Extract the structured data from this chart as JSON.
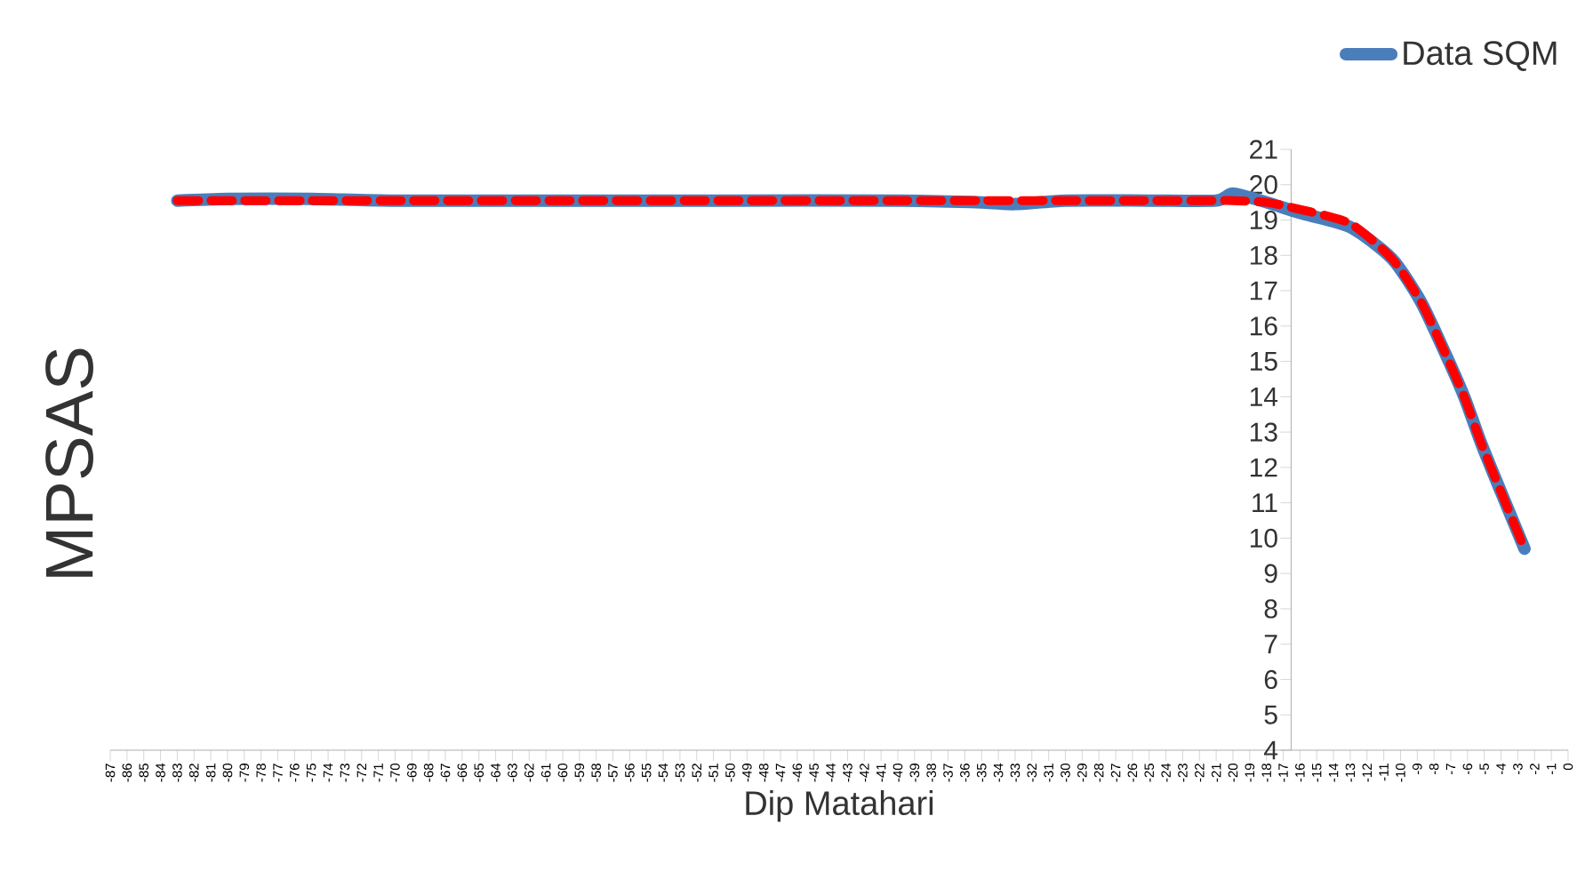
{
  "chart_data": {
    "type": "line",
    "xlabel": "Dip Matahari",
    "ylabel": "MPSAS",
    "series": [
      {
        "name": "Data SQM",
        "color": "#4a7ebb",
        "line_style": "solid",
        "x": [
          -83,
          -80,
          -75,
          -70,
          -60,
          -50,
          -40,
          -35,
          -33,
          -30,
          -25,
          -21,
          -20,
          -18,
          -16,
          -13,
          -10.5,
          -8.8,
          -7.4,
          -6.2,
          -5.2,
          -4,
          -2.6
        ],
        "values": [
          19.55,
          19.6,
          19.6,
          19.55,
          19.55,
          19.55,
          19.55,
          19.5,
          19.45,
          19.55,
          19.55,
          19.55,
          19.75,
          19.5,
          19.2,
          18.8,
          17.9,
          16.7,
          15.3,
          14.0,
          12.7,
          11.3,
          9.7
        ]
      },
      {
        "type": "line",
        "color": "#ff0000",
        "line_style": "dashed",
        "x": [
          -83,
          -80,
          -75,
          -70,
          -60,
          -50,
          -40,
          -35,
          -30,
          -25,
          -21,
          -20,
          -18,
          -16,
          -13,
          -10.5,
          -8.8,
          -7.4,
          -6.2,
          -5.2,
          -4,
          -2.6
        ],
        "values": [
          19.55,
          19.55,
          19.55,
          19.55,
          19.55,
          19.55,
          19.55,
          19.55,
          19.55,
          19.55,
          19.55,
          19.55,
          19.5,
          19.3,
          18.9,
          17.9,
          16.7,
          15.3,
          14.0,
          12.7,
          11.3,
          9.7
        ]
      }
    ],
    "xlim": [
      -87,
      0
    ],
    "xticks": [
      -87,
      -86,
      -85,
      -84,
      -83,
      -82,
      -81,
      -80,
      -79,
      -78,
      -77,
      -76,
      -75,
      -74,
      -73,
      -72,
      -71,
      -70,
      -69,
      -68,
      -67,
      -66,
      -65,
      -64,
      -63,
      -62,
      -61,
      -60,
      -59,
      -58,
      -57,
      -56,
      -55,
      -54,
      -53,
      -52,
      -51,
      -50,
      -49,
      -48,
      -47,
      -46,
      -45,
      -44,
      -43,
      -42,
      -41,
      -40,
      -39,
      -38,
      -37,
      -36,
      -35,
      -34,
      -33,
      -32,
      -31,
      -30,
      -29,
      -28,
      -27,
      -26,
      -25,
      -24,
      -23,
      -22,
      -21,
      -20,
      -19,
      -18,
      -17,
      -16,
      -15,
      -14,
      -13,
      -12,
      -11,
      -10,
      -9,
      -8,
      -7,
      -6,
      -5,
      -4,
      -3,
      -2,
      -1,
      0
    ],
    "ylim": [
      4,
      21
    ],
    "yticks": [
      4,
      5,
      6,
      7,
      8,
      9,
      10,
      11,
      12,
      13,
      14,
      15,
      16,
      17,
      18,
      19,
      20,
      21
    ],
    "legend": "top right",
    "grid": false,
    "marker": "none"
  }
}
